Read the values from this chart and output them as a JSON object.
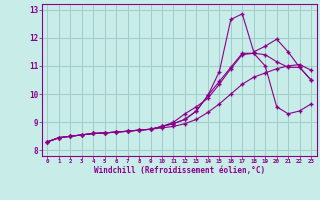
{
  "bg_color": "#c8ece8",
  "grid_color": "#a0ccc8",
  "line_color": "#8b008b",
  "marker": "+",
  "markersize": 3.5,
  "linewidth": 0.8,
  "xlabel": "Windchill (Refroidissement éolien,°C)",
  "xlim": [
    -0.5,
    23.5
  ],
  "ylim": [
    7.8,
    13.2
  ],
  "xtick_labels": [
    "0",
    "1",
    "2",
    "3",
    "4",
    "5",
    "6",
    "7",
    "8",
    "9",
    "10",
    "11",
    "12",
    "13",
    "14",
    "15",
    "16",
    "17",
    "18",
    "19",
    "20",
    "21",
    "22",
    "23"
  ],
  "ytick_values": [
    8,
    9,
    10,
    11,
    12,
    13
  ],
  "lines": [
    {
      "x": [
        0,
        1,
        2,
        3,
        4,
        5,
        6,
        7,
        8,
        9,
        10,
        11,
        12,
        13,
        14,
        15,
        16,
        17,
        18,
        19,
        20,
        21,
        22,
        23
      ],
      "y": [
        8.3,
        8.45,
        8.5,
        8.55,
        8.6,
        8.62,
        8.65,
        8.68,
        8.72,
        8.75,
        8.8,
        8.85,
        8.95,
        9.1,
        9.35,
        9.65,
        10.0,
        10.35,
        10.6,
        10.75,
        10.9,
        11.0,
        11.05,
        10.85
      ]
    },
    {
      "x": [
        0,
        1,
        2,
        3,
        4,
        5,
        6,
        7,
        8,
        9,
        10,
        11,
        12,
        13,
        14,
        15,
        16,
        17,
        18,
        19,
        20,
        21,
        22,
        23
      ],
      "y": [
        8.3,
        8.45,
        8.5,
        8.55,
        8.6,
        8.62,
        8.65,
        8.68,
        8.72,
        8.75,
        8.85,
        9.0,
        9.3,
        9.55,
        9.85,
        10.35,
        10.9,
        11.4,
        11.45,
        11.4,
        11.15,
        10.95,
        10.95,
        10.5
      ]
    },
    {
      "x": [
        0,
        1,
        2,
        3,
        4,
        5,
        6,
        7,
        8,
        9,
        10,
        11,
        12,
        13,
        14,
        15,
        16,
        17,
        18,
        19,
        20,
        21,
        22,
        23
      ],
      "y": [
        8.3,
        8.45,
        8.5,
        8.55,
        8.6,
        8.62,
        8.65,
        8.68,
        8.72,
        8.75,
        8.85,
        8.95,
        9.1,
        9.4,
        9.95,
        10.8,
        12.65,
        12.85,
        11.5,
        11.7,
        11.95,
        11.5,
        10.95,
        10.5
      ]
    },
    {
      "x": [
        0,
        1,
        2,
        3,
        4,
        5,
        6,
        7,
        8,
        9,
        10,
        11,
        12,
        13,
        14,
        15,
        16,
        17,
        18,
        19,
        20,
        21,
        22,
        23
      ],
      "y": [
        8.3,
        8.45,
        8.5,
        8.55,
        8.6,
        8.62,
        8.65,
        8.68,
        8.72,
        8.75,
        8.85,
        8.95,
        9.1,
        9.4,
        9.95,
        10.45,
        10.95,
        11.45,
        11.45,
        11.0,
        9.55,
        9.3,
        9.4,
        9.65
      ]
    }
  ]
}
